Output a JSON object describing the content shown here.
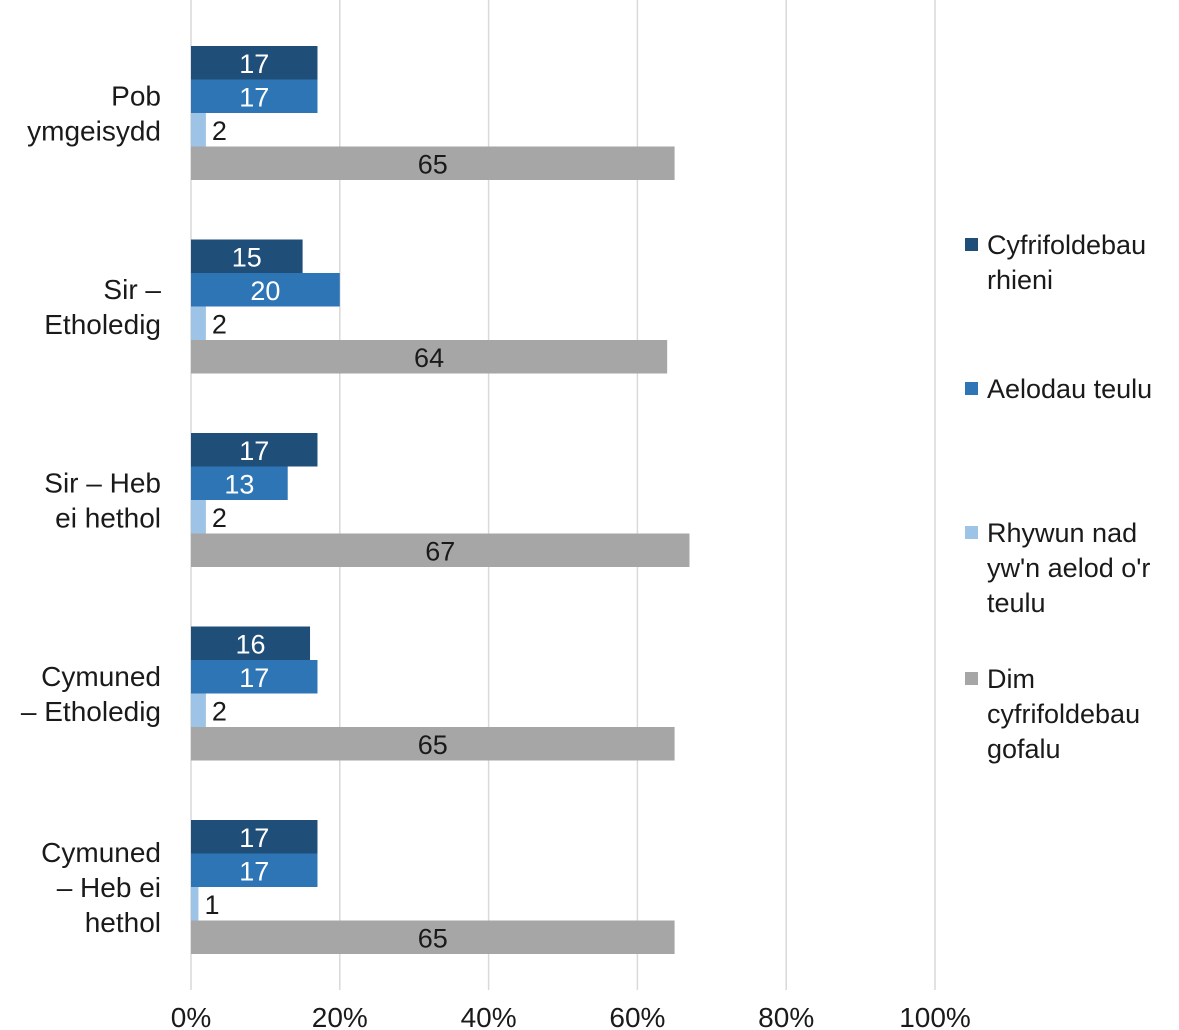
{
  "chart_data": {
    "type": "bar",
    "orientation": "horizontal",
    "categories": [
      "Pob ymgeisydd",
      "Sir – Etholedig",
      "Sir – Heb ei hethol",
      "Cymuned – Etholedig",
      "Cymuned – Heb ei hethol"
    ],
    "category_lines": [
      [
        "Pob",
        "ymgeisydd"
      ],
      [
        "Sir –",
        "Etholedig"
      ],
      [
        "Sir – Heb",
        "ei hethol"
      ],
      [
        "Cymuned",
        "– Etholedig"
      ],
      [
        "Cymuned",
        "– Heb ei",
        "hethol"
      ]
    ],
    "series": [
      {
        "name": "Cyfrifoldebau rhieni",
        "name_lines": [
          "Cyfrifoldebau",
          "rhieni"
        ],
        "color": "#1f4e79",
        "label_color": "#ffffff",
        "values": [
          17,
          15,
          17,
          16,
          17
        ]
      },
      {
        "name": "Aelodau teulu",
        "name_lines": [
          "Aelodau teulu"
        ],
        "color": "#2e75b6",
        "label_color": "#ffffff",
        "values": [
          17,
          20,
          13,
          17,
          17
        ]
      },
      {
        "name": "Rhywun nad yw'n aelod o'r teulu",
        "name_lines": [
          "Rhywun nad",
          "yw'n aelod o'r",
          "teulu"
        ],
        "color": "#9dc3e6",
        "label_color": "#1a1a1a",
        "values": [
          2,
          2,
          2,
          2,
          1
        ]
      },
      {
        "name": "Dim cyfrifoldebau gofalu",
        "name_lines": [
          "Dim",
          "cyfrifoldebau",
          "gofalu"
        ],
        "color": "#a6a6a6",
        "label_color": "#1a1a1a",
        "values": [
          65,
          64,
          67,
          65,
          65
        ]
      }
    ],
    "xlim": [
      0,
      100
    ],
    "x_ticks": [
      0,
      20,
      40,
      60,
      80,
      100
    ],
    "x_tick_labels": [
      "0%",
      "20%",
      "40%",
      "60%",
      "80%",
      "100%"
    ],
    "grid": true,
    "legend_position": "right",
    "data_labels": true
  }
}
